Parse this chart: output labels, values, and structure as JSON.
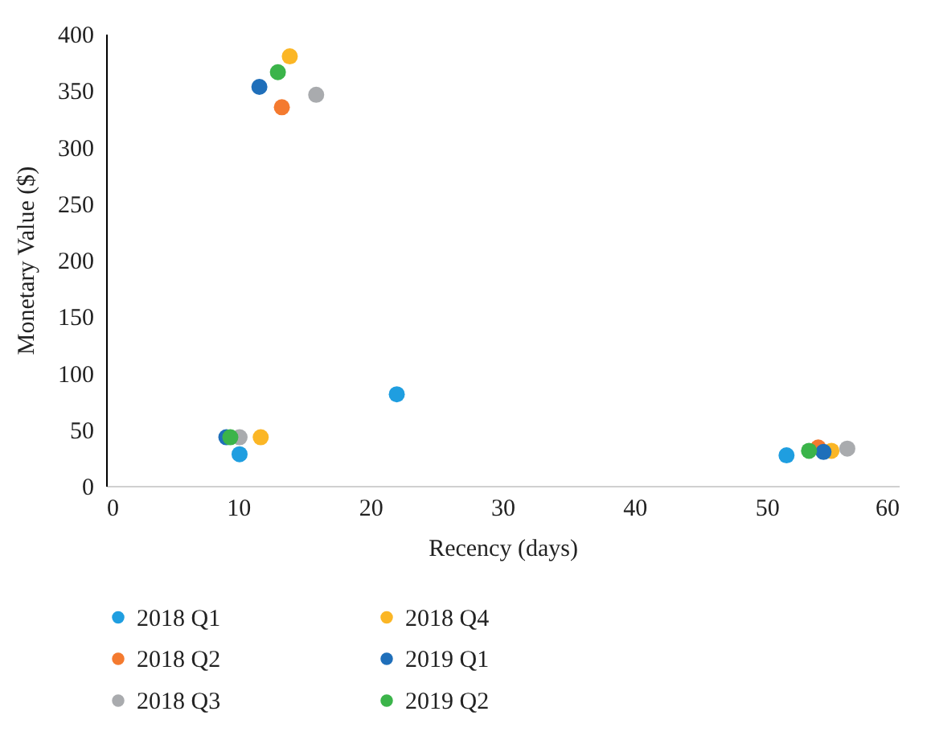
{
  "chart_data": {
    "type": "scatter",
    "xlabel": "Recency (days)",
    "ylabel": "Monetary Value ($)",
    "xlim": [
      0,
      60
    ],
    "xticks": [
      0,
      10,
      20,
      30,
      40,
      50,
      60
    ],
    "ylim": [
      0,
      400
    ],
    "yticks": [
      0,
      50,
      100,
      150,
      200,
      250,
      300,
      350,
      400
    ],
    "grid": false,
    "legend": "bottom",
    "marker": "circle",
    "series": [
      {
        "name": "2018 Q1",
        "color": "#1f9ee0",
        "x": [
          10.1,
          22.0,
          51.5
        ],
        "values": [
          28,
          81,
          27
        ]
      },
      {
        "name": "2018 Q2",
        "color": "#f47a2f",
        "x": [
          13.3,
          null,
          53.9
        ],
        "values": [
          335,
          null,
          34
        ]
      },
      {
        "name": "2018 Q3",
        "color": "#a9abae",
        "x": [
          15.9,
          10.1,
          56.1
        ],
        "values": [
          346,
          43,
          33
        ]
      },
      {
        "name": "2018 Q4",
        "color": "#fbb625",
        "x": [
          13.9,
          11.7,
          54.9
        ],
        "values": [
          380,
          43,
          31
        ]
      },
      {
        "name": "2019 Q1",
        "color": "#1f6fba",
        "x": [
          11.6,
          9.1,
          54.3
        ],
        "values": [
          353,
          43,
          30
        ]
      },
      {
        "name": "2019 Q2",
        "color": "#3bb44a",
        "x": [
          13.0,
          9.4,
          53.2
        ],
        "values": [
          366,
          43,
          31
        ]
      }
    ]
  }
}
